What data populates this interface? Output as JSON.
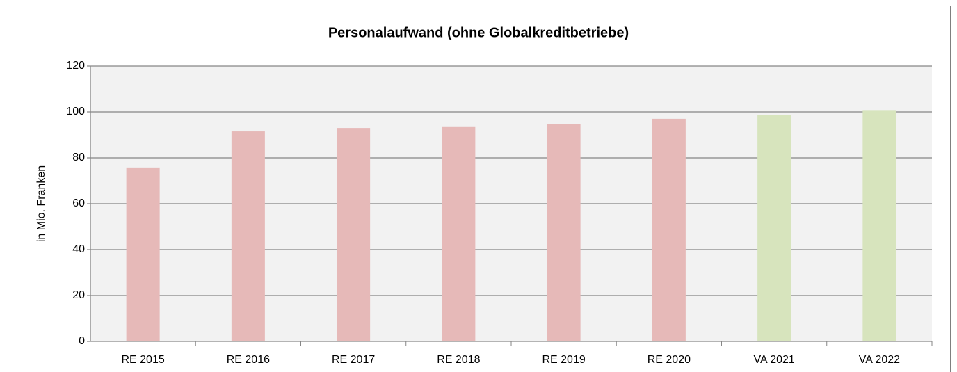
{
  "chart_data": {
    "type": "bar",
    "title": "Personalaufwand (ohne Globalkreditbetriebe)",
    "y_label": "in Mio. Franken",
    "categories": [
      "RE 2015",
      "RE 2016",
      "RE 2017",
      "RE 2018",
      "RE 2019",
      "RE 2020",
      "VA 2021",
      "VA 2022"
    ],
    "values": [
      75.8,
      91.5,
      93,
      93.7,
      94.6,
      97,
      98.5,
      100.8
    ],
    "colors": [
      "#e6b9b8",
      "#e6b9b8",
      "#e6b9b8",
      "#e6b9b8",
      "#e6b9b8",
      "#e6b9b8",
      "#d7e4bd",
      "#d7e4bd"
    ],
    "ylim": [
      0,
      120
    ],
    "yticks": [
      0,
      20,
      40,
      60,
      80,
      100,
      120
    ],
    "grid": true
  }
}
